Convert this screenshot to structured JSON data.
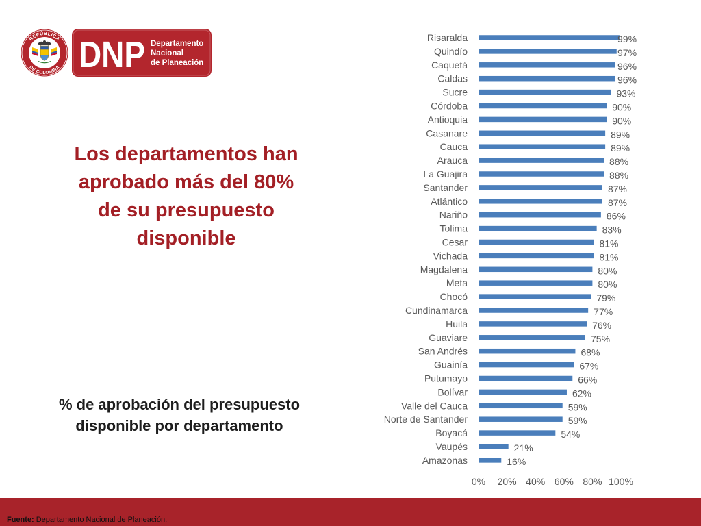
{
  "colors": {
    "brand_red": "#B3262D",
    "heading_red": "#A31F25",
    "footer_band": "#A8232A",
    "title_text": "#1E1E1E",
    "axis_text": "#595959"
  },
  "logo": {
    "seal_top_text": "REPÚBLICA",
    "seal_bottom_text": "DE COLOMBIA",
    "seal_icon": "coat-of-arms-icon",
    "acronym": "DNP",
    "name_lines": [
      "Departamento",
      "Nacional",
      "de Planeación"
    ]
  },
  "heading_lines": [
    "Los departamentos han",
    "aprobado más del 80%",
    "de su presupuesto",
    "disponible"
  ],
  "chart_data": {
    "type": "bar",
    "horizontal": true,
    "title": "% de aprobación del presupuesto disponible por departamento",
    "xlabel": "",
    "ylabel": "",
    "categories": [
      "Risaralda",
      "Quindío",
      "Caquetá",
      "Caldas",
      "Sucre",
      "Córdoba",
      "Antioquia",
      "Casanare",
      "Cauca",
      "Arauca",
      "La Guajira",
      "Santander",
      "Atlántico",
      "Nariño",
      "Tolima",
      "Cesar",
      "Vichada",
      "Magdalena",
      "Meta",
      "Chocó",
      "Cundinamarca",
      "Huila",
      "Guaviare",
      "San Andrés",
      "Guainía",
      "Putumayo",
      "Bolívar",
      "Valle del Cauca",
      "Norte de Santander",
      "Boyacá",
      "Vaupés",
      "Amazonas"
    ],
    "values": [
      99,
      97,
      96,
      96,
      93,
      90,
      90,
      89,
      89,
      88,
      88,
      87,
      87,
      86,
      83,
      81,
      81,
      80,
      80,
      79,
      77,
      76,
      75,
      68,
      67,
      66,
      62,
      59,
      59,
      54,
      21,
      16
    ],
    "data_labels": [
      "99%",
      "97%",
      "96%",
      "96%",
      "93%",
      "90%",
      "90%",
      "89%",
      "89%",
      "88%",
      "88%",
      "87%",
      "87%",
      "86%",
      "83%",
      "81%",
      "81%",
      "80%",
      "80%",
      "79%",
      "77%",
      "76%",
      "75%",
      "68%",
      "67%",
      "66%",
      "62%",
      "59%",
      "59%",
      "54%",
      "21%",
      "16%"
    ],
    "xlim": [
      0,
      100
    ],
    "xtick_values": [
      0,
      20,
      40,
      60,
      80,
      100
    ],
    "xtick_labels": [
      "0%",
      "20%",
      "40%",
      "60%",
      "80%",
      "100%"
    ],
    "grid": false,
    "show_legend": false,
    "bar_color": "#4A7EBB"
  },
  "footer": {
    "label": "Fuente:",
    "text": "Departamento Nacional de Planeación."
  }
}
